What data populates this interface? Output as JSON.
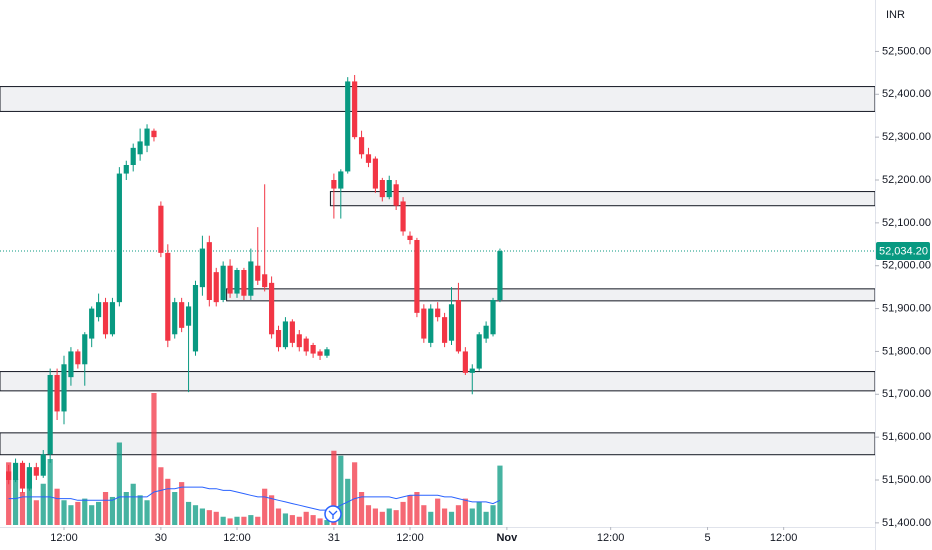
{
  "chart_data": {
    "type": "candlestick",
    "currency": "INR",
    "xlim": [
      -1.25,
      125.2
    ],
    "xticks": [
      {
        "value": 8,
        "label": "12:00"
      },
      {
        "value": 22,
        "label": "30"
      },
      {
        "value": 33,
        "label": "12:00"
      },
      {
        "value": 47,
        "label": "31"
      },
      {
        "value": 58,
        "label": "12:00"
      },
      {
        "value": 72,
        "label": "Nov"
      },
      {
        "value": 87,
        "label": "12:00"
      },
      {
        "value": 101,
        "label": "5"
      },
      {
        "value": 112,
        "label": "12:00"
      }
    ],
    "ylim": [
      51395,
      52620
    ],
    "yticks": [
      {
        "value": 51400,
        "label": "51,400.00"
      },
      {
        "value": 51500,
        "label": "51,500.00"
      },
      {
        "value": 51600,
        "label": "51,600.00"
      },
      {
        "value": 51700,
        "label": "51,700.00"
      },
      {
        "value": 51800,
        "label": "51,800.00"
      },
      {
        "value": 51900,
        "label": "51,900.00"
      },
      {
        "value": 52000,
        "label": "52,000.00"
      },
      {
        "value": 52100,
        "label": "52,100.00"
      },
      {
        "value": 52200,
        "label": "52,200.00"
      },
      {
        "value": 52300,
        "label": "52,300.00"
      },
      {
        "value": 52400,
        "label": "52,400.00"
      },
      {
        "value": 52500,
        "label": "52,500.00"
      }
    ],
    "open": [
      51520,
      51500,
      51540,
      51480,
      51530,
      51510,
      51560,
      51745,
      51660,
      51740,
      51800,
      51770,
      51830,
      51880,
      51915,
      51840,
      51915,
      52215,
      52235,
      52260,
      52280,
      52315,
      52140,
      52030,
      51840,
      51915,
      51860,
      51800,
      51950,
      52055,
      51985,
      51920,
      52000,
      51935,
      51990,
      51930,
      52000,
      51980,
      51960,
      51850,
      51810,
      51870,
      51840,
      51830,
      51815,
      51800,
      51790,
      52200,
      52180,
      52220,
      52430,
      52300,
      52260,
      52250,
      52200,
      52160,
      52190,
      52150,
      52070,
      52060,
      51900,
      51820,
      51900,
      51880,
      51825,
      51920,
      51800,
      51750,
      51760,
      51830,
      51840,
      51920
    ],
    "high": [
      51535,
      51550,
      51545,
      51540,
      51540,
      51570,
      51760,
      51760,
      51790,
      51810,
      51805,
      51845,
      51905,
      51935,
      51925,
      51925,
      52230,
      52245,
      52285,
      52320,
      52330,
      52320,
      52150,
      52050,
      51925,
      51925,
      51915,
      51965,
      52070,
      52070,
      51995,
      52010,
      52015,
      51995,
      51995,
      52040,
      52090,
      52190,
      51975,
      51860,
      51880,
      51875,
      51850,
      51835,
      51820,
      51805,
      51810,
      52215,
      52225,
      52440,
      52445,
      52315,
      52275,
      52255,
      52205,
      52210,
      52200,
      52160,
      52080,
      52065,
      51910,
      51910,
      51915,
      51890,
      51950,
      51960,
      51810,
      51770,
      51845,
      51870,
      51925,
      52040
    ],
    "low": [
      51490,
      51495,
      51470,
      51475,
      51500,
      51505,
      51540,
      51640,
      51630,
      51720,
      51760,
      51720,
      51810,
      51870,
      51830,
      51835,
      51905,
      52200,
      52220,
      52245,
      52265,
      52290,
      52020,
      51810,
      51830,
      51845,
      51705,
      51790,
      51930,
      51905,
      51905,
      51915,
      51925,
      51925,
      51920,
      51920,
      51955,
      51940,
      51830,
      51800,
      51805,
      51810,
      51800,
      51790,
      51785,
      51780,
      51785,
      52110,
      52110,
      52215,
      52295,
      52250,
      52230,
      52170,
      52150,
      52155,
      52130,
      52070,
      52050,
      51880,
      51820,
      51810,
      51870,
      51810,
      51815,
      51795,
      51745,
      51700,
      51755,
      51820,
      51835,
      51915
    ],
    "close": [
      51500,
      51540,
      51480,
      51530,
      51510,
      51560,
      51745,
      51660,
      51770,
      51800,
      51770,
      51840,
      51900,
      51915,
      51840,
      51915,
      52215,
      52235,
      52275,
      52290,
      52320,
      52300,
      52030,
      51825,
      51915,
      51855,
      51905,
      51955,
      52040,
      51920,
      51915,
      52000,
      51935,
      51990,
      51930,
      52010,
      51965,
      51950,
      51840,
      51810,
      51870,
      51820,
      51810,
      51800,
      51795,
      51790,
      51805,
      52180,
      52220,
      52430,
      52300,
      52260,
      52240,
      52180,
      52160,
      52200,
      52140,
      52080,
      52060,
      51890,
      51830,
      51900,
      51880,
      51820,
      51910,
      51800,
      51750,
      51760,
      51840,
      51860,
      51920,
      52034.2
    ],
    "volume": [
      38,
      28,
      20,
      33,
      15,
      25,
      40,
      22,
      15,
      12,
      14,
      16,
      12,
      14,
      20,
      17,
      50,
      20,
      25,
      18,
      15,
      80,
      35,
      28,
      20,
      26,
      14,
      12,
      10,
      9,
      8,
      5,
      4,
      5,
      5,
      6,
      5,
      22,
      18,
      10,
      7,
      6,
      5,
      8,
      6,
      4,
      3,
      45,
      42,
      28,
      38,
      20,
      12,
      10,
      8,
      10,
      9,
      14,
      18,
      20,
      12,
      8,
      16,
      10,
      8,
      12,
      16,
      10,
      14,
      8,
      12,
      36
    ],
    "volume_ma": [
      16,
      16,
      17,
      17,
      17,
      17,
      17,
      16,
      16,
      16,
      15,
      15,
      15,
      15,
      15,
      15,
      17,
      17,
      17,
      17,
      17,
      20,
      21,
      22,
      22,
      23,
      23,
      23,
      23,
      22,
      22,
      21,
      21,
      20,
      19,
      18,
      17,
      17,
      16,
      15,
      14,
      13,
      12,
      11,
      10,
      9,
      9,
      10,
      12,
      14,
      16,
      17,
      17,
      17,
      17,
      17,
      16,
      17,
      18,
      18,
      18,
      18,
      18,
      17,
      17,
      16,
      15,
      14,
      14,
      14,
      13,
      15
    ],
    "volume_lim": [
      0,
      100
    ],
    "up_color": "#089981",
    "down_color": "#f23645",
    "ma_color": "#2962ff",
    "zones": [
      {
        "low": 52360,
        "high": 52418
      },
      {
        "start": 47,
        "low": 52140,
        "high": 52173
      },
      {
        "start": 32,
        "low": 51918,
        "high": 51946
      },
      {
        "low": 51708,
        "low_": null,
        "high": 51753
      },
      {
        "low": 51559,
        "high": 51610
      }
    ],
    "last_price": {
      "value": 52034.2,
      "label": "52,034.20"
    }
  }
}
